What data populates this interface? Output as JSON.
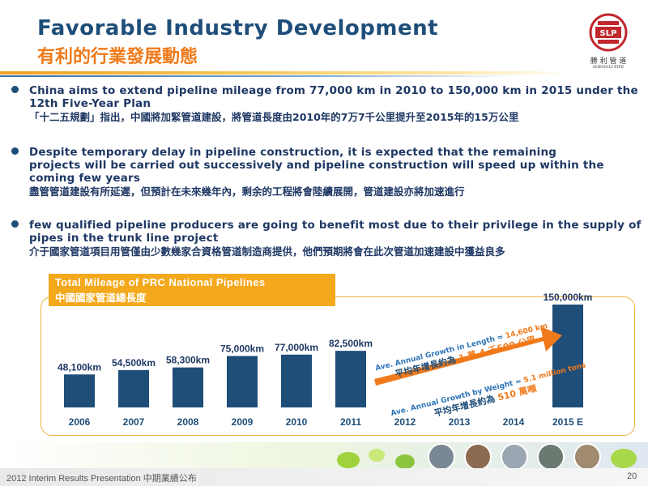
{
  "title": {
    "en": "Favorable Industry Development",
    "zh": "有利的行業發展動態"
  },
  "logo": {
    "badge": "SLP",
    "name_zh": "勝 利 管 道",
    "name_en": "SHENGLI PIPE"
  },
  "bullets": [
    {
      "en": "China aims to extend pipeline mileage from 77,000 km in 2010 to 150,000 km in 2015 under the 12th Five-Year Plan",
      "zh": "「十二五規劃」指出，中國將加緊管道建設，將管道長度由2010年的7万7千公里提升至2015年的15万公里"
    },
    {
      "en": "Despite temporary delay in pipeline construction, it is expected that the remaining projects will be carried out successively and pipeline construction will speed up within the coming few years",
      "zh": "盡管管道建設有所延遲，但預計在未來幾年內，剩余的工程將會陸續展開，管道建設亦將加速進行"
    },
    {
      "en": "few qualified pipeline producers are going to benefit most due to their privilege in the supply of pipes in the trunk line project",
      "zh": "介于國家管道項目用管僅由少數幾家合資格管道制造商提供，他們預期將會在此次管道加速建設中獲益良多"
    }
  ],
  "chart_data": {
    "type": "bar",
    "title": "Total Mileage of PRC National Pipelines",
    "title_zh": "中國國家管道總長度",
    "categories": [
      "2006",
      "2007",
      "2008",
      "2009",
      "2010",
      "2011",
      "2012",
      "2013",
      "2014",
      "2015 E"
    ],
    "values": [
      48100,
      54500,
      58300,
      75000,
      77000,
      82500,
      null,
      null,
      null,
      150000
    ],
    "data_labels": [
      "48,100km",
      "54,500km",
      "58,300km",
      "75,000km",
      "77,000km",
      "82,500km",
      "",
      "",
      "",
      "150,000km"
    ],
    "unit": "km",
    "bar_color": "#1f4e79",
    "annotations": [
      {
        "en": "Ave. Annual Growth  in Length ≈ ",
        "value": "14,600 km",
        "zh": "平均年增長約為 ",
        "zh_value": "1 萬 4 千600 公里"
      },
      {
        "en": "Ave. Annual Growth by Weight ≈ ",
        "value": "5.1 million tons",
        "zh": "平均年增長約為 ",
        "zh_value": "510 萬噸"
      }
    ],
    "arrow_color": "#f07a1a"
  },
  "footer": {
    "text": "2012 Interim Results Presentation    中期業績公布",
    "page": "20"
  }
}
